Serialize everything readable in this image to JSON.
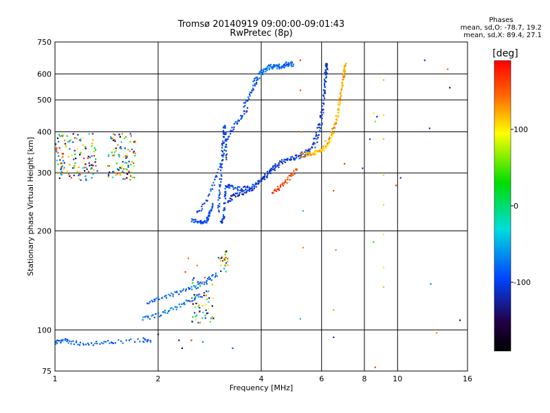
{
  "header": {
    "title": "Tromsø 20140919 09:00:00-09:01:43",
    "subtitle": "RwPretec (8p)"
  },
  "phases": {
    "heading": "Phases",
    "line_o": "mean, sd,O: -78.7, 19.2",
    "line_x": "mean, sd,X: 89.4, 27.1"
  },
  "colorbar": {
    "unit": "[deg]",
    "ticks": [
      {
        "value": 100,
        "label": "100"
      },
      {
        "value": 0,
        "label": "0"
      },
      {
        "value": -100,
        "label": "-100"
      }
    ],
    "range": [
      -190,
      190
    ]
  },
  "chart_data": {
    "type": "scatter",
    "xlabel": "Frequency [MHz]",
    "ylabel": "Stationary phase Virtual Height [km]",
    "xscale": "log",
    "yscale": "log",
    "xlim": [
      1,
      16
    ],
    "ylim": [
      75,
      750
    ],
    "xticks": [
      1,
      2,
      4,
      6,
      8,
      10,
      16
    ],
    "xtick_labels": [
      "1",
      "2",
      "4",
      "6",
      "8",
      "10",
      "16"
    ],
    "yticks": [
      75,
      100,
      200,
      300,
      400,
      500,
      600,
      750
    ],
    "ytick_labels": [
      "75",
      "100",
      "200",
      "300",
      "400",
      "500",
      "600",
      "750"
    ],
    "grid": true,
    "traces": [
      {
        "name": "",
        "phase": -95,
        "x": [
          2.5,
          2.6,
          2.7,
          2.78,
          2.8,
          2.85,
          2.9
        ],
        "y": [
          215,
          214,
          213,
          214,
          220,
          232,
          240
        ]
      },
      {
        "name": "",
        "phase": -100,
        "x": [
          3.05,
          3.1,
          3.12,
          3.15,
          3.2,
          3.3,
          3.5,
          3.7,
          3.9,
          4.1,
          4.3,
          4.6,
          5.0,
          5.4,
          5.8,
          6.0,
          6.1,
          6.15,
          6.2
        ],
        "y": [
          212,
          220,
          240,
          270,
          275,
          272,
          268,
          272,
          280,
          290,
          305,
          325,
          335,
          340,
          370,
          430,
          520,
          600,
          650
        ]
      },
      {
        "name": "",
        "phase": -110,
        "x": [
          3.2,
          3.3,
          3.45,
          3.6,
          3.8,
          4.0,
          4.2,
          4.4,
          4.8,
          5.2,
          5.6,
          5.9,
          6.1,
          6.2,
          6.25
        ],
        "y": [
          245,
          255,
          260,
          262,
          270,
          285,
          300,
          318,
          330,
          338,
          360,
          420,
          510,
          600,
          640
        ]
      },
      {
        "name": "",
        "phase": -100,
        "x": [
          3.0,
          3.02,
          3.05,
          3.08,
          3.1,
          3.12,
          3.15,
          3.18
        ],
        "y": [
          230,
          260,
          300,
          340,
          380,
          420,
          380,
          320
        ]
      },
      {
        "name": "",
        "phase": -95,
        "x": [
          2.6,
          2.75,
          2.9,
          3.05,
          3.2,
          3.35,
          3.5,
          3.65
        ],
        "y": [
          225,
          245,
          275,
          320,
          385,
          420,
          445,
          470
        ]
      },
      {
        "name": "",
        "phase": -90,
        "x": [
          3.55,
          3.7,
          3.85,
          4.0,
          4.2,
          4.45,
          4.7,
          4.95
        ],
        "y": [
          480,
          520,
          560,
          610,
          630,
          635,
          640,
          650
        ]
      },
      {
        "name": "",
        "phase": -75,
        "x": [
          3.8,
          4.0,
          4.2,
          4.4,
          4.7,
          5.0
        ],
        "y": [
          575,
          605,
          625,
          630,
          635,
          640
        ]
      },
      {
        "name": "",
        "phase": 110,
        "x": [
          5.4,
          5.7,
          6.0,
          6.3,
          6.5,
          6.7,
          6.8,
          6.9,
          7.0,
          7.05
        ],
        "y": [
          340,
          345,
          350,
          370,
          400,
          450,
          500,
          560,
          610,
          650
        ]
      },
      {
        "name": "",
        "phase": 130,
        "x": [
          5.2,
          5.5,
          5.9,
          6.3,
          6.6,
          6.8,
          6.95,
          7.0
        ],
        "y": [
          340,
          342,
          348,
          380,
          430,
          500,
          580,
          640
        ]
      },
      {
        "name": "",
        "phase": 165,
        "x": [
          4.3,
          4.5,
          4.7,
          4.9,
          5.1
        ],
        "y": [
          262,
          270,
          280,
          295,
          310
        ]
      },
      {
        "name": "",
        "phase": -80,
        "x": [
          1.85,
          2.0,
          2.2,
          2.4,
          2.6,
          2.8,
          3.0
        ],
        "y": [
          120,
          124,
          128,
          132,
          136,
          142,
          148
        ]
      },
      {
        "name": "",
        "phase": -75,
        "x": [
          1.8,
          1.95,
          2.1,
          2.3,
          2.5,
          2.7
        ],
        "y": [
          108,
          110,
          113,
          118,
          124,
          128
        ]
      },
      {
        "name": "",
        "phase": -85,
        "x": [
          1.0,
          1.05,
          1.1,
          1.2,
          1.35,
          1.5,
          1.8,
          1.9
        ],
        "y": [
          92,
          93,
          92,
          91,
          91,
          92,
          93,
          94
        ]
      }
    ],
    "clouds": [
      {
        "name": "",
        "x_range": [
          1.0,
          1.33
        ],
        "y_range": [
          285,
          395
        ],
        "count": 130
      },
      {
        "name": "",
        "x_range": [
          1.42,
          1.72
        ],
        "y_range": [
          285,
          395
        ],
        "count": 100
      },
      {
        "name": "",
        "x_range": [
          2.5,
          2.9
        ],
        "y_range": [
          105,
          145
        ],
        "count": 60
      },
      {
        "name": "",
        "x_range": [
          3.0,
          3.2
        ],
        "y_range": [
          150,
          175
        ],
        "count": 25
      }
    ],
    "scattered_points": [
      {
        "x": 5.2,
        "y": 660,
        "phase": 170
      },
      {
        "x": 5.2,
        "y": 535,
        "phase": 160
      },
      {
        "x": 5.25,
        "y": 400,
        "phase": 150
      },
      {
        "x": 5.3,
        "y": 230,
        "phase": -40
      },
      {
        "x": 5.3,
        "y": 178,
        "phase": 140
      },
      {
        "x": 5.2,
        "y": 108,
        "phase": -40
      },
      {
        "x": 6.5,
        "y": 265,
        "phase": 170
      },
      {
        "x": 6.6,
        "y": 175,
        "phase": 140
      },
      {
        "x": 6.5,
        "y": 115,
        "phase": 60
      },
      {
        "x": 6.5,
        "y": 95,
        "phase": -110
      },
      {
        "x": 7.0,
        "y": 320,
        "phase": 170
      },
      {
        "x": 7.9,
        "y": 310,
        "phase": -110
      },
      {
        "x": 8.3,
        "y": 380,
        "phase": -110
      },
      {
        "x": 8.5,
        "y": 455,
        "phase": 100
      },
      {
        "x": 8.6,
        "y": 430,
        "phase": 60
      },
      {
        "x": 8.7,
        "y": 445,
        "phase": -130
      },
      {
        "x": 8.5,
        "y": 185,
        "phase": 40
      },
      {
        "x": 8.6,
        "y": 77,
        "phase": 170
      },
      {
        "x": 9.1,
        "y": 575,
        "phase": 120
      },
      {
        "x": 9.1,
        "y": 450,
        "phase": 110
      },
      {
        "x": 9.1,
        "y": 380,
        "phase": 120
      },
      {
        "x": 9.1,
        "y": 295,
        "phase": 110
      },
      {
        "x": 9.1,
        "y": 240,
        "phase": 110
      },
      {
        "x": 9.1,
        "y": 195,
        "phase": 100
      },
      {
        "x": 9.1,
        "y": 155,
        "phase": 100
      },
      {
        "x": 9.1,
        "y": 135,
        "phase": 120
      },
      {
        "x": 9.9,
        "y": 275,
        "phase": 170
      },
      {
        "x": 10.2,
        "y": 290,
        "phase": -110
      },
      {
        "x": 12.0,
        "y": 660,
        "phase": -110
      },
      {
        "x": 12.4,
        "y": 410,
        "phase": -110
      },
      {
        "x": 12.5,
        "y": 138,
        "phase": -70
      },
      {
        "x": 14.0,
        "y": 620,
        "phase": 150
      },
      {
        "x": 14.2,
        "y": 545,
        "phase": -150
      },
      {
        "x": 15.2,
        "y": 107,
        "phase": -150
      },
      {
        "x": 13.0,
        "y": 98,
        "phase": 140
      },
      {
        "x": 2.3,
        "y": 93,
        "phase": -150
      },
      {
        "x": 2.5,
        "y": 93,
        "phase": 175
      },
      {
        "x": 2.35,
        "y": 88,
        "phase": -150
      },
      {
        "x": 2.7,
        "y": 92,
        "phase": -70
      },
      {
        "x": 3.3,
        "y": 88,
        "phase": -90
      },
      {
        "x": 2.0,
        "y": 97,
        "phase": -150
      },
      {
        "x": 1.9,
        "y": 92,
        "phase": -70
      },
      {
        "x": 2.4,
        "y": 150,
        "phase": 170
      },
      {
        "x": 2.45,
        "y": 165,
        "phase": 150
      },
      {
        "x": 2.6,
        "y": 157,
        "phase": 140
      }
    ]
  }
}
